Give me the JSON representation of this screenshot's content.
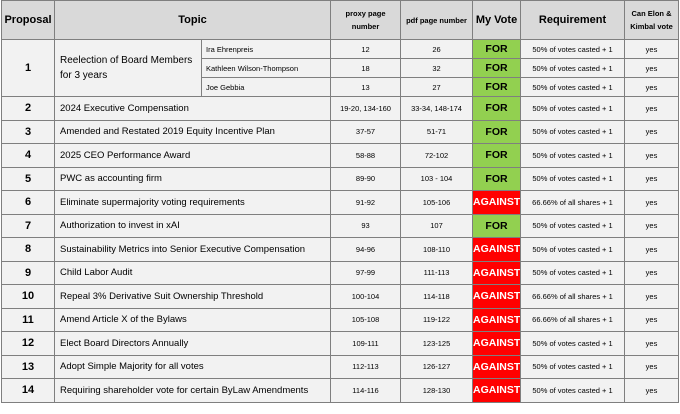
{
  "headers": {
    "proposal": "Proposal",
    "topic": "Topic",
    "proxy_page": "proxy page number",
    "pdf_page": "pdf page number",
    "my_vote": "My Vote",
    "requirement": "Requirement",
    "can_vote": "Can Elon & Kimbal vote"
  },
  "proposal1": {
    "number": "1",
    "topic": "Reelection of Board Members for 3 years",
    "nominees": [
      {
        "name": "Ira Ehrenpreis",
        "proxy": "12",
        "pdf": "26",
        "vote": "FOR",
        "requirement": "50% of votes casted + 1",
        "can_vote": "yes"
      },
      {
        "name": "Kathleen Wilson-Thompson",
        "proxy": "18",
        "pdf": "32",
        "vote": "FOR",
        "requirement": "50% of votes casted + 1",
        "can_vote": "yes"
      },
      {
        "name": "Joe Gebbia",
        "proxy": "13",
        "pdf": "27",
        "vote": "FOR",
        "requirement": "50% of votes casted + 1",
        "can_vote": "yes"
      }
    ]
  },
  "rows": [
    {
      "number": "2",
      "topic": "2024 Executive Compensation",
      "proxy": "19-20, 134-160",
      "pdf": "33-34, 148-174",
      "vote": "FOR",
      "requirement": "50% of votes casted + 1",
      "can_vote": "yes"
    },
    {
      "number": "3",
      "topic": "Amended and Restated 2019 Equity Incentive Plan",
      "proxy": "37-57",
      "pdf": "51-71",
      "vote": "FOR",
      "requirement": "50% of votes casted + 1",
      "can_vote": "yes"
    },
    {
      "number": "4",
      "topic": "2025 CEO Performance Award",
      "proxy": "58-88",
      "pdf": "72-102",
      "vote": "FOR",
      "requirement": "50% of votes casted + 1",
      "can_vote": "yes"
    },
    {
      "number": "5",
      "topic": "PWC as accounting firm",
      "proxy": "89-90",
      "pdf": "103 - 104",
      "vote": "FOR",
      "requirement": "50% of votes casted + 1",
      "can_vote": "yes"
    },
    {
      "number": "6",
      "topic": "Eliminate supermajority voting requirements",
      "proxy": "91-92",
      "pdf": "105-106",
      "vote": "AGAINST",
      "requirement": "66.66% of all shares + 1",
      "can_vote": "yes"
    },
    {
      "number": "7",
      "topic": "Authorization to invest in xAI",
      "proxy": "93",
      "pdf": "107",
      "vote": "FOR",
      "requirement": "50% of votes casted + 1",
      "can_vote": "yes"
    },
    {
      "number": "8",
      "topic": "Sustainability Metrics into Senior Executive Compensation",
      "proxy": "94-96",
      "pdf": "108-110",
      "vote": "AGAINST",
      "requirement": "50% of votes casted + 1",
      "can_vote": "yes"
    },
    {
      "number": "9",
      "topic": "Child Labor Audit",
      "proxy": "97-99",
      "pdf": "111-113",
      "vote": "AGAINST",
      "requirement": "50% of votes casted + 1",
      "can_vote": "yes"
    },
    {
      "number": "10",
      "topic": "Repeal 3% Derivative Suit Ownership Threshold",
      "proxy": "100-104",
      "pdf": "114-118",
      "vote": "AGAINST",
      "requirement": "66.66% of all shares + 1",
      "can_vote": "yes"
    },
    {
      "number": "11",
      "topic": "Amend Article X of the Bylaws",
      "proxy": "105-108",
      "pdf": "119-122",
      "vote": "AGAINST",
      "requirement": "66.66% of all shares + 1",
      "can_vote": "yes"
    },
    {
      "number": "12",
      "topic": "Elect Board Directors Annually",
      "proxy": "109-111",
      "pdf": "123-125",
      "vote": "AGAINST",
      "requirement": "50% of votes casted + 1",
      "can_vote": "yes"
    },
    {
      "number": "13",
      "topic": "Adopt Simple Majority for all votes",
      "proxy": "112-113",
      "pdf": "126-127",
      "vote": "AGAINST",
      "requirement": "50% of votes casted + 1",
      "can_vote": "yes"
    },
    {
      "number": "14",
      "topic": "Requiring shareholder vote for certain ByLaw Amendments",
      "proxy": "114-116",
      "pdf": "128-130",
      "vote": "AGAINST",
      "requirement": "50% of votes casted + 1",
      "can_vote": "yes"
    }
  ],
  "colors": {
    "for": "#92d050",
    "against": "#ff0000",
    "header": "#d9d9d9",
    "cell": "#f2f2f2"
  }
}
